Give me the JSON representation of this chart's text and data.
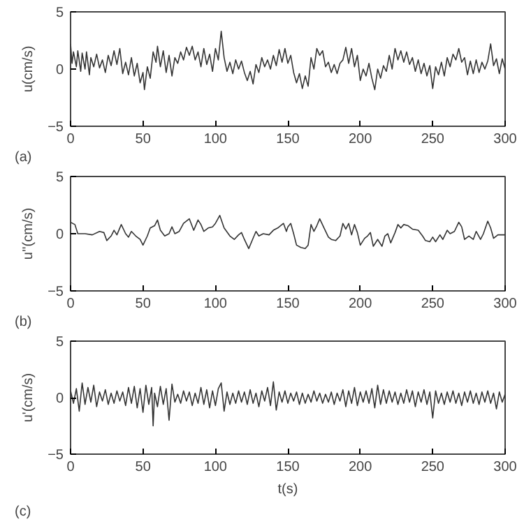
{
  "chart_data": [
    {
      "type": "line",
      "ylabel": "u(cm/s)",
      "annotations": [
        "(a)"
      ],
      "xlim": [
        0,
        300
      ],
      "ylim": [
        -5,
        5
      ],
      "xticks": [
        0,
        50,
        100,
        150,
        200,
        250,
        300
      ],
      "yticks": [
        -5,
        0,
        5
      ],
      "grid": false,
      "color": "#333333",
      "x": [
        0,
        1,
        2,
        4,
        5,
        7,
        8,
        10,
        11,
        13,
        14,
        16,
        18,
        20,
        22,
        24,
        26,
        28,
        30,
        32,
        34,
        36,
        38,
        40,
        42,
        44,
        46,
        48,
        50,
        51,
        53,
        55,
        57,
        59,
        60,
        62,
        64,
        66,
        68,
        70,
        72,
        74,
        76,
        78,
        80,
        82,
        84,
        86,
        88,
        90,
        92,
        94,
        96,
        98,
        100,
        102,
        104,
        106,
        108,
        110,
        112,
        114,
        116,
        118,
        120,
        122,
        124,
        126,
        128,
        130,
        132,
        134,
        136,
        138,
        140,
        142,
        144,
        146,
        148,
        150,
        152,
        154,
        156,
        158,
        160,
        162,
        164,
        166,
        168,
        170,
        172,
        174,
        176,
        178,
        180,
        182,
        184,
        186,
        188,
        190,
        192,
        194,
        196,
        198,
        200,
        202,
        204,
        206,
        208,
        210,
        212,
        214,
        216,
        218,
        220,
        222,
        224,
        226,
        228,
        230,
        232,
        234,
        236,
        238,
        240,
        242,
        244,
        246,
        248,
        250,
        252,
        254,
        256,
        258,
        260,
        262,
        264,
        266,
        268,
        270,
        272,
        274,
        276,
        278,
        280,
        282,
        284,
        286,
        288,
        290,
        292,
        294,
        296,
        298,
        300
      ],
      "values": [
        2.2,
        0.5,
        1.5,
        0.2,
        1.6,
        -0.2,
        1.4,
        0,
        1.5,
        -0.5,
        1.0,
        0.2,
        1.3,
        0.1,
        0.8,
        -0.3,
        1.2,
        0.3,
        1.6,
        0.4,
        1.8,
        -0.4,
        0.6,
        -0.5,
        1.0,
        -0.6,
        0.5,
        -1.2,
        -0.3,
        -1.8,
        0.2,
        -0.8,
        1.5,
        0.6,
        2.0,
        0.2,
        1.6,
        -0.3,
        1.2,
        -0.6,
        1.0,
        0.5,
        1.5,
        0.8,
        1.9,
        1.2,
        2.0,
        0.8,
        1.5,
        0.2,
        1.8,
        0.4,
        1.3,
        -0.2,
        1.8,
        0.8,
        3.3,
        1.0,
        -0.2,
        0.6,
        -0.4,
        0.8,
        0.0,
        0.7,
        -0.3,
        -1.0,
        -0.2,
        -1.3,
        0.4,
        -0.3,
        1.0,
        0.2,
        0.8,
        0,
        1.2,
        0.3,
        1.7,
        0.6,
        1.8,
        0.5,
        1.2,
        -0.3,
        -1.2,
        -0.4,
        -1.7,
        -0.6,
        -1.5,
        1.0,
        0.0,
        1.8,
        1.2,
        1.6,
        0.2,
        0.6,
        -0.3,
        0.4,
        -0.4,
        0.5,
        0.8,
        1.9,
        0.5,
        1.8,
        0.2,
        1.2,
        -1.0,
        0.0,
        -0.6,
        0.5,
        -0.8,
        -1.8,
        0.0,
        -0.8,
        0.3,
        -0.2,
        1.2,
        0.0,
        1.8,
        0.8,
        1.6,
        0.6,
        1.5,
        0.4,
        1.0,
        -0.2,
        0.8,
        -0.4,
        0.5,
        -0.6,
        0.3,
        -1.7,
        0.2,
        -0.5,
        0.6,
        -0.6,
        1.0,
        0.2,
        1.3,
        0.8,
        1.8,
        0.6,
        1.0,
        -0.5,
        0.7,
        -0.4,
        0.8,
        -0.3,
        0.6,
        0.0,
        0.7,
        2.2,
        0.3,
        0.9,
        -0.4,
        0.9,
        0.0
      ]
    },
    {
      "type": "line",
      "ylabel": "u''(cm/s)",
      "annotations": [
        "(b)"
      ],
      "xlim": [
        0,
        300
      ],
      "ylim": [
        -5,
        5
      ],
      "xticks": [
        0,
        50,
        100,
        150,
        200,
        250,
        300
      ],
      "yticks": [
        -5,
        0,
        5
      ],
      "grid": false,
      "color": "#333333",
      "x": [
        0,
        3,
        5,
        10,
        15,
        20,
        23,
        25,
        28,
        30,
        32,
        35,
        38,
        40,
        42,
        45,
        48,
        50,
        53,
        55,
        58,
        60,
        62,
        65,
        68,
        70,
        72,
        75,
        78,
        82,
        85,
        88,
        90,
        92,
        95,
        98,
        100,
        103,
        106,
        110,
        113,
        116,
        118,
        120,
        123,
        126,
        128,
        130,
        133,
        137,
        140,
        143,
        147,
        149,
        150,
        152,
        154,
        156,
        159,
        162,
        164,
        166,
        168,
        170,
        172,
        175,
        178,
        180,
        183,
        186,
        188,
        190,
        192,
        194,
        196,
        198,
        200,
        203,
        205,
        207,
        209,
        212,
        215,
        217,
        219,
        221,
        224,
        226,
        228,
        230,
        233,
        236,
        240,
        243,
        245,
        248,
        250,
        252,
        255,
        257,
        260,
        262,
        265,
        268,
        270,
        272,
        275,
        278,
        280,
        283,
        285,
        288,
        290,
        292,
        295,
        300
      ],
      "values": [
        1,
        0.8,
        0,
        0,
        -0.1,
        0.2,
        0.1,
        -0.6,
        -0.2,
        0.3,
        -0.1,
        0.8,
        0,
        -0.3,
        0.2,
        -0.2,
        -0.5,
        -1.0,
        -0.2,
        0.5,
        0.7,
        1.2,
        0.3,
        -0.2,
        0,
        0.6,
        0,
        0.2,
        0.9,
        1.3,
        0.3,
        1.2,
        0.8,
        0.2,
        0.5,
        0.6,
        0.9,
        1.6,
        0.5,
        -0.2,
        -0.5,
        -0.1,
        0.1,
        -0.5,
        -1.3,
        -0.4,
        0.2,
        -0.2,
        0,
        -0.1,
        0.3,
        0.5,
        0.9,
        0.2,
        0.6,
        0.9,
        0,
        -1.0,
        -1.2,
        -1.3,
        -1.0,
        0.8,
        0.2,
        0.7,
        1.3,
        0.5,
        -0.3,
        -0.5,
        -0.6,
        -0.2,
        0.9,
        0.4,
        0.9,
        -0.1,
        0.8,
        0.1,
        -1.0,
        -0.4,
        -0.2,
        0.1,
        -1.1,
        -0.5,
        -1.1,
        -0.2,
        0,
        -0.8,
        0.1,
        0.8,
        0.5,
        0.8,
        0.7,
        0.4,
        0.3,
        -0.2,
        -0.6,
        -0.7,
        -0.3,
        -0.7,
        -0.1,
        -0.5,
        0.3,
        0,
        0.2,
        1.0,
        0.6,
        -0.5,
        -0.2,
        -0.5,
        0.2,
        -0.5,
        0,
        1.1,
        0.5,
        -0.4,
        -0.1,
        -0.1
      ]
    },
    {
      "type": "line",
      "ylabel": "u'(cm/s)",
      "xlabel": "t(s)",
      "annotations": [
        "(c)"
      ],
      "xlim": [
        0,
        300
      ],
      "ylim": [
        -5,
        5
      ],
      "xticks": [
        0,
        50,
        100,
        150,
        200,
        250,
        300
      ],
      "yticks": [
        -5,
        0,
        5
      ],
      "grid": false,
      "color": "#333333",
      "x": [
        0,
        2,
        4,
        6,
        8,
        10,
        12,
        14,
        16,
        18,
        20,
        22,
        24,
        26,
        28,
        30,
        32,
        34,
        36,
        38,
        40,
        42,
        44,
        46,
        48,
        50,
        52,
        54,
        56,
        57,
        58,
        60,
        62,
        64,
        66,
        68,
        70,
        72,
        74,
        76,
        78,
        80,
        82,
        84,
        86,
        88,
        90,
        92,
        94,
        96,
        98,
        100,
        102,
        104,
        106,
        108,
        110,
        112,
        114,
        116,
        118,
        120,
        122,
        124,
        126,
        128,
        130,
        132,
        134,
        136,
        138,
        140,
        142,
        144,
        146,
        148,
        150,
        152,
        154,
        156,
        158,
        160,
        162,
        164,
        166,
        168,
        170,
        172,
        174,
        176,
        178,
        180,
        182,
        184,
        186,
        188,
        190,
        192,
        194,
        196,
        198,
        200,
        202,
        204,
        206,
        208,
        210,
        212,
        214,
        216,
        218,
        220,
        222,
        224,
        226,
        228,
        230,
        232,
        234,
        236,
        238,
        240,
        242,
        244,
        246,
        248,
        250,
        252,
        254,
        256,
        258,
        260,
        262,
        264,
        266,
        268,
        270,
        272,
        274,
        276,
        278,
        280,
        282,
        284,
        286,
        288,
        290,
        292,
        294,
        296,
        298,
        300
      ],
      "values": [
        0.6,
        -0.5,
        0.8,
        -1.2,
        1.3,
        -0.6,
        0.9,
        -0.4,
        1.1,
        -0.8,
        0.5,
        -0.3,
        0.7,
        -0.6,
        0.4,
        -0.5,
        0.6,
        -0.3,
        0.5,
        -0.7,
        0.9,
        -0.5,
        1.0,
        -0.9,
        0.8,
        -1.3,
        1.1,
        -0.6,
        0.9,
        -2.5,
        0.4,
        -0.8,
        1.0,
        -0.6,
        0.8,
        -2.0,
        1.2,
        -0.4,
        0.3,
        -0.5,
        0.6,
        -0.3,
        0.5,
        -0.7,
        0.4,
        -0.5,
        0.9,
        -0.6,
        0.7,
        -0.9,
        0.6,
        -0.7,
        0.8,
        1.3,
        -1.2,
        0.5,
        -0.6,
        0.4,
        -0.5,
        0.6,
        -0.4,
        0.5,
        -0.6,
        0.7,
        -0.5,
        0.4,
        -0.8,
        0.6,
        -0.3,
        0.9,
        -0.7,
        1.4,
        -1.1,
        0.5,
        -0.4,
        0.6,
        -0.5,
        0.4,
        -0.3,
        0.5,
        -0.6,
        0.4,
        -0.5,
        0.3,
        -0.4,
        0.6,
        -0.3,
        0.4,
        -0.5,
        0.3,
        -0.4,
        0.5,
        -0.6,
        0.4,
        -0.3,
        0.7,
        -0.8,
        0.6,
        -0.5,
        0.9,
        -0.7,
        0.5,
        -0.4,
        0.6,
        -0.5,
        0.8,
        -0.9,
        1.1,
        -0.6,
        0.7,
        -0.5,
        0.6,
        -0.4,
        0.5,
        -0.6,
        0.4,
        -0.5,
        0.7,
        -0.4,
        0.6,
        -0.8,
        0.5,
        -0.4,
        0.7,
        -0.6,
        0.5,
        -1.8,
        0.6,
        -0.5,
        0.4,
        -0.6,
        0.5,
        -0.4,
        0.6,
        -0.5,
        0.4,
        -0.7,
        0.5,
        -0.4,
        0.6,
        -0.5,
        0.4,
        -0.6,
        0.5,
        -0.4,
        0.6,
        -0.5,
        0.4,
        -1.0,
        0.5,
        -0.4,
        0.3
      ]
    }
  ]
}
